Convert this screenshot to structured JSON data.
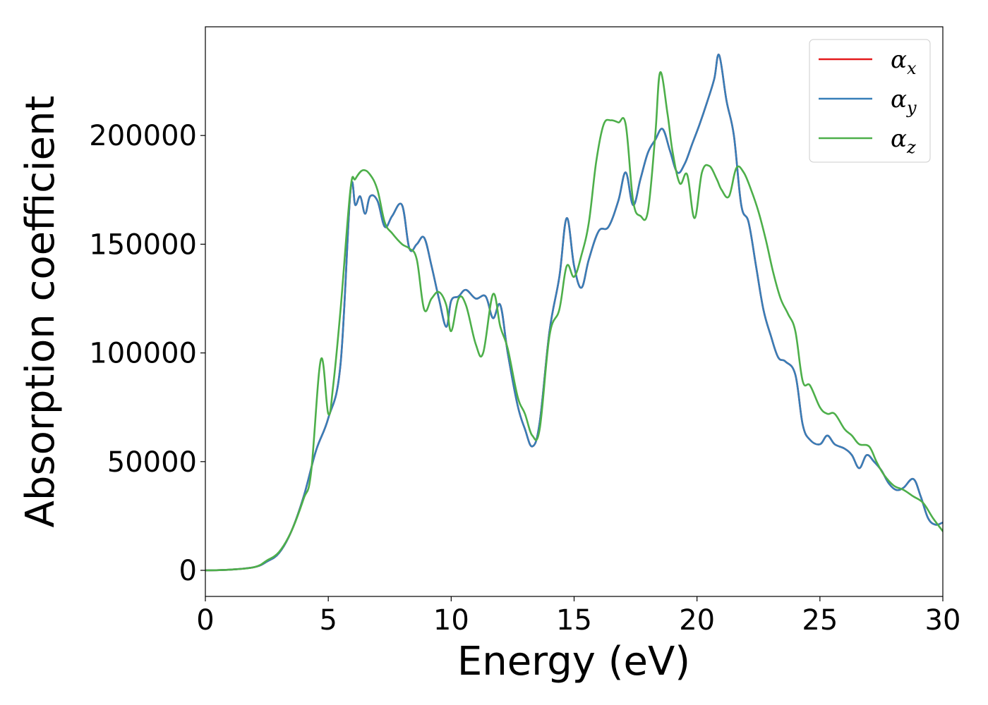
{
  "chart_data": {
    "type": "line",
    "title": "",
    "xlabel": "Energy (eV)",
    "ylabel": "Absorption coefficient",
    "xlim": [
      0,
      30
    ],
    "ylim": [
      -12000,
      250000
    ],
    "xticks": [
      0,
      5,
      10,
      15,
      20,
      25,
      30
    ],
    "xtick_labels": [
      "0",
      "5",
      "10",
      "15",
      "20",
      "25",
      "30"
    ],
    "yticks": [
      0,
      50000,
      100000,
      150000,
      200000
    ],
    "ytick_labels": [
      "0",
      "50000",
      "100000",
      "150000",
      "200000"
    ],
    "grid": false,
    "legend_position": "top-right",
    "series": [
      {
        "name": "αx",
        "label_base": "α",
        "label_sub": "x",
        "color": "#e41a1c",
        "x": [
          0,
          1,
          2,
          2.5,
          3,
          3.5,
          4,
          4.5,
          5,
          5.5,
          5.9,
          6.1,
          6.3,
          6.5,
          6.7,
          7.0,
          7.3,
          7.6,
          8.0,
          8.3,
          8.6,
          8.9,
          9.2,
          9.5,
          9.8,
          10.0,
          10.3,
          10.6,
          11.0,
          11.4,
          11.7,
          12.0,
          12.3,
          12.7,
          13.0,
          13.3,
          13.6,
          14.0,
          14.4,
          14.7,
          15.0,
          15.3,
          15.6,
          16.0,
          16.4,
          16.8,
          17.1,
          17.4,
          17.7,
          18.0,
          18.3,
          18.6,
          18.9,
          19.2,
          19.5,
          19.8,
          20.1,
          20.4,
          20.7,
          20.9,
          21.2,
          21.5,
          21.8,
          22.1,
          22.4,
          22.7,
          23.0,
          23.3,
          23.6,
          24.0,
          24.3,
          24.6,
          25.0,
          25.3,
          25.6,
          26.0,
          26.3,
          26.6,
          26.9,
          27.2,
          27.5,
          27.8,
          28.1,
          28.4,
          28.8,
          29.1,
          29.4,
          29.7,
          30.0
        ],
        "y": [
          0,
          300,
          1500,
          4000,
          8000,
          18000,
          34000,
          55000,
          70000,
          95000,
          174000,
          168000,
          172000,
          164000,
          172000,
          170000,
          158000,
          163000,
          168000,
          148000,
          150000,
          153000,
          140000,
          125000,
          112000,
          124000,
          126000,
          129000,
          125000,
          126000,
          116000,
          122000,
          100000,
          76000,
          65000,
          57000,
          68000,
          110000,
          135000,
          162000,
          140000,
          130000,
          143000,
          156000,
          158000,
          170000,
          183000,
          168000,
          180000,
          192000,
          198000,
          203000,
          193000,
          183000,
          187000,
          196000,
          205000,
          215000,
          226000,
          237000,
          216000,
          200000,
          168000,
          160000,
          140000,
          120000,
          108000,
          98000,
          96000,
          90000,
          67000,
          60000,
          58000,
          62000,
          58000,
          56000,
          53000,
          47000,
          53000,
          50000,
          46000,
          40000,
          37000,
          38000,
          42000,
          34000,
          24000,
          21000,
          22000
        ]
      },
      {
        "name": "αy",
        "label_base": "α",
        "label_sub": "y",
        "color": "#377eb8",
        "x": [
          0,
          1,
          2,
          2.5,
          3,
          3.5,
          4,
          4.5,
          5,
          5.5,
          5.9,
          6.1,
          6.3,
          6.5,
          6.7,
          7.0,
          7.3,
          7.6,
          8.0,
          8.3,
          8.6,
          8.9,
          9.2,
          9.5,
          9.8,
          10.0,
          10.3,
          10.6,
          11.0,
          11.4,
          11.7,
          12.0,
          12.3,
          12.7,
          13.0,
          13.3,
          13.6,
          14.0,
          14.4,
          14.7,
          15.0,
          15.3,
          15.6,
          16.0,
          16.4,
          16.8,
          17.1,
          17.4,
          17.7,
          18.0,
          18.3,
          18.6,
          18.9,
          19.2,
          19.5,
          19.8,
          20.1,
          20.4,
          20.7,
          20.9,
          21.2,
          21.5,
          21.8,
          22.1,
          22.4,
          22.7,
          23.0,
          23.3,
          23.6,
          24.0,
          24.3,
          24.6,
          25.0,
          25.3,
          25.6,
          26.0,
          26.3,
          26.6,
          26.9,
          27.2,
          27.5,
          27.8,
          28.1,
          28.4,
          28.8,
          29.1,
          29.4,
          29.7,
          30.0
        ],
        "y": [
          0,
          300,
          1500,
          4000,
          8000,
          18000,
          34000,
          55000,
          70000,
          95000,
          174000,
          168000,
          172000,
          164000,
          172000,
          170000,
          158000,
          163000,
          168000,
          148000,
          150000,
          153000,
          140000,
          125000,
          112000,
          124000,
          126000,
          129000,
          125000,
          126000,
          116000,
          122000,
          100000,
          76000,
          65000,
          57000,
          68000,
          110000,
          135000,
          162000,
          140000,
          130000,
          143000,
          156000,
          158000,
          170000,
          183000,
          168000,
          180000,
          192000,
          198000,
          203000,
          193000,
          183000,
          187000,
          196000,
          205000,
          215000,
          226000,
          237000,
          216000,
          200000,
          168000,
          160000,
          140000,
          120000,
          108000,
          98000,
          96000,
          90000,
          67000,
          60000,
          58000,
          62000,
          58000,
          56000,
          53000,
          47000,
          53000,
          50000,
          46000,
          40000,
          37000,
          38000,
          42000,
          34000,
          24000,
          21000,
          22000
        ]
      },
      {
        "name": "αz",
        "label_base": "α",
        "label_sub": "z",
        "color": "#4daf4a",
        "x": [
          0,
          1,
          2,
          2.5,
          3,
          3.5,
          4,
          4.3,
          4.7,
          5.0,
          5.2,
          5.5,
          5.9,
          6.1,
          6.4,
          6.7,
          7.0,
          7.3,
          7.6,
          8.0,
          8.3,
          8.6,
          8.9,
          9.2,
          9.5,
          9.8,
          10.0,
          10.3,
          10.6,
          11.0,
          11.3,
          11.7,
          12.0,
          12.3,
          12.7,
          13.0,
          13.3,
          13.6,
          14.0,
          14.4,
          14.7,
          15.0,
          15.3,
          15.6,
          15.9,
          16.2,
          16.5,
          16.8,
          17.1,
          17.4,
          17.7,
          18.0,
          18.3,
          18.5,
          18.8,
          19.0,
          19.3,
          19.6,
          19.9,
          20.2,
          20.5,
          20.8,
          21.0,
          21.3,
          21.6,
          21.9,
          22.2,
          22.5,
          22.8,
          23.1,
          23.4,
          23.7,
          24.0,
          24.3,
          24.6,
          25.0,
          25.3,
          25.6,
          26.0,
          26.3,
          26.6,
          27.0,
          27.3,
          27.6,
          28.0,
          28.4,
          28.8,
          29.2,
          29.6,
          30.0
        ],
        "y": [
          0,
          300,
          1500,
          4500,
          8500,
          18000,
          33000,
          45000,
          97000,
          72000,
          85000,
          120000,
          175000,
          180000,
          184000,
          182000,
          175000,
          160000,
          155000,
          150000,
          148000,
          143000,
          120000,
          125000,
          128000,
          122000,
          110000,
          125000,
          122000,
          104000,
          100000,
          127000,
          112000,
          102000,
          80000,
          72000,
          62000,
          65000,
          108000,
          120000,
          140000,
          135000,
          145000,
          160000,
          188000,
          205000,
          207000,
          206000,
          205000,
          170000,
          163000,
          165000,
          200000,
          229000,
          210000,
          193000,
          178000,
          182000,
          162000,
          183000,
          186000,
          180000,
          175000,
          172000,
          185000,
          183000,
          175000,
          165000,
          152000,
          137000,
          125000,
          118000,
          110000,
          87000,
          85000,
          75000,
          72000,
          72000,
          65000,
          62000,
          58000,
          57000,
          50000,
          44000,
          39000,
          37000,
          34000,
          31000,
          24000,
          18000
        ]
      }
    ]
  }
}
